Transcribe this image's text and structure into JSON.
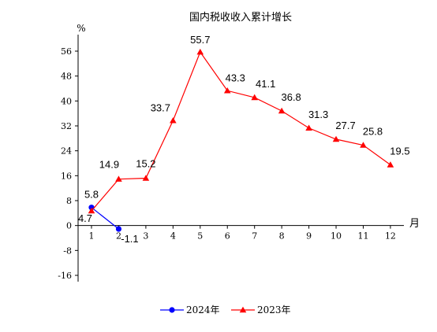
{
  "chart_data": {
    "type": "line",
    "title": "国内税收收入累计增长",
    "ylabel": "%",
    "xlabel": "月",
    "ylim": [
      -16,
      56
    ],
    "y_ticks": [
      56,
      48,
      40,
      32,
      24,
      16,
      8,
      0,
      -8,
      -16
    ],
    "x": [
      1,
      2,
      3,
      4,
      5,
      6,
      7,
      8,
      9,
      10,
      11,
      12
    ],
    "x_tick_labels": [
      "1",
      "2",
      "3",
      "4",
      "5",
      "6",
      "7",
      "8",
      "9",
      "10",
      "11",
      "12"
    ],
    "grid": false,
    "legend_position": "bottom-center",
    "series": [
      {
        "name": "2024年",
        "color": "#0000ff",
        "marker": "circle",
        "x": [
          1,
          2
        ],
        "values": [
          5.8,
          -1.1
        ],
        "labels": [
          "5.8",
          "-1.1"
        ]
      },
      {
        "name": "2023年",
        "color": "#ff0000",
        "marker": "triangle",
        "x": [
          1,
          2,
          3,
          4,
          5,
          6,
          7,
          8,
          9,
          10,
          11,
          12
        ],
        "values": [
          4.7,
          14.9,
          15.2,
          33.7,
          55.7,
          43.3,
          41.1,
          36.8,
          31.3,
          27.7,
          25.8,
          19.5
        ],
        "labels": [
          "4.7",
          "14.9",
          "15.2",
          "33.7",
          "55.7",
          "43.3",
          "41.1",
          "36.8",
          "31.3",
          "27.7",
          "25.8",
          "19.5"
        ]
      }
    ]
  }
}
